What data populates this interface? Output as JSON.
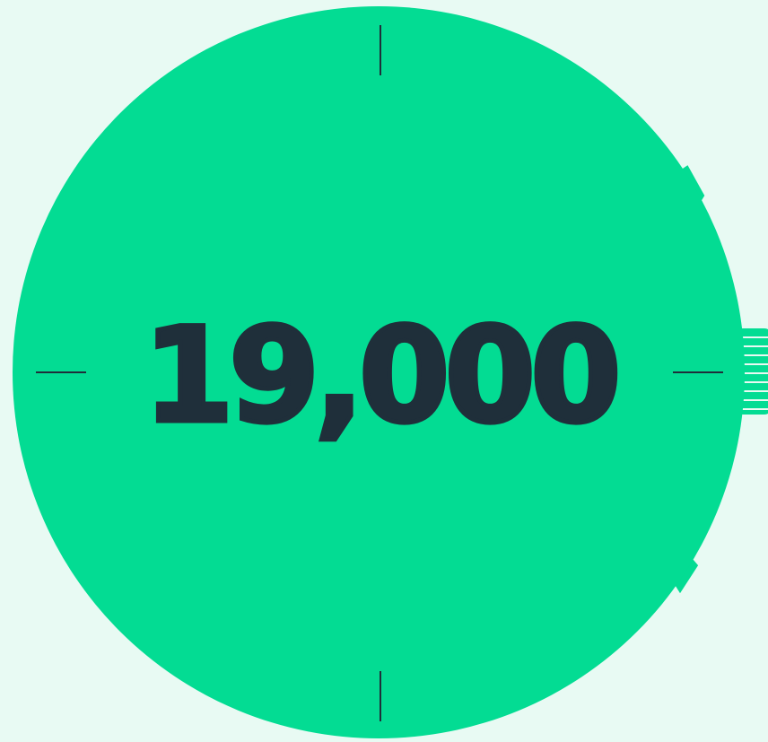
{
  "counter": {
    "value": "19,000"
  },
  "colors": {
    "background": "#e8faf3",
    "dial": "#03dc93",
    "ink": "#1f2f3a"
  },
  "icons": {
    "crown": "watch-crown-icon",
    "upper_pusher": "pusher-icon",
    "lower_pusher": "pusher-icon",
    "hour_markers": "tick-mark-icon"
  }
}
